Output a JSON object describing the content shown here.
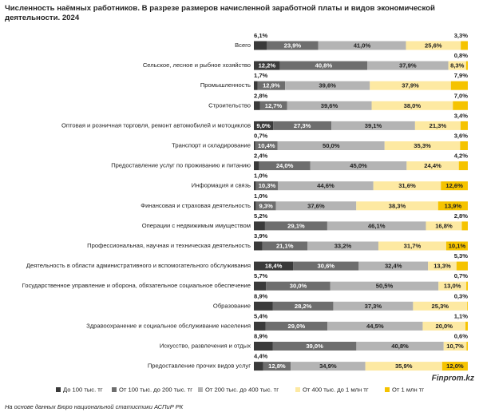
{
  "chart_data": {
    "type": "stacked-bar-horizontal-100",
    "title": "Численность наёмных работников. В разрезе размеров начисленной заработной платы и видов экономической деятельности. 2024",
    "categories": [
      "Всего",
      "Сельское, лесное и рыбное хозяйство",
      "Промышленность",
      "Строительство",
      "Оптовая и розничная торговля, ремонт автомобилей и мотоциклов",
      "Транспорт и складирование",
      "Предоставление услуг по проживанию и питанию",
      "Информация и связь",
      "Финансовая и страховая деятельность",
      "Операции с недвижимым имуществом",
      "Профессиональная, научная и техническая деятельность",
      "Деятельность в области административного и вспомогательного обслуживания",
      "Государственное управление и оборона, обязательное социальное обеспечение",
      "Образование",
      "Здравоохранение и социальное обслуживание населения",
      "Искусство, развлечения и отдых",
      "Предоставление прочих видов услуг"
    ],
    "series": [
      {
        "name": "До 100 тыс. тг",
        "color": "#3a3a3a",
        "values": [
          6.1,
          12.2,
          1.7,
          2.8,
          9.0,
          0.7,
          2.4,
          1.0,
          1.0,
          5.2,
          3.9,
          18.4,
          5.7,
          8.9,
          5.4,
          8.9,
          4.4
        ],
        "value_labels": [
          "6,1%",
          "12,2%",
          "1,7%",
          "2,8%",
          "9,0%",
          "0,7%",
          "2,4%",
          "1,0%",
          "1,0%",
          "5,2%",
          "3,9%",
          "18,4%",
          "5,7%",
          "8,9%",
          "5,4%",
          "8,9%",
          "4,4%"
        ]
      },
      {
        "name": "От 100 тыс. до 200 тыс. тг",
        "color": "#6e6e6e",
        "values": [
          23.9,
          40.8,
          12.9,
          12.7,
          27.3,
          10.4,
          24.0,
          10.3,
          9.3,
          29.1,
          21.1,
          30.6,
          30.0,
          28.2,
          29.0,
          39.0,
          12.8
        ],
        "value_labels": [
          "23,9%",
          "40,8%",
          "12,9%",
          "12,7%",
          "27,3%",
          "10,4%",
          "24,0%",
          "10,3%",
          "9,3%",
          "29,1%",
          "21,1%",
          "30,6%",
          "30,0%",
          "28,2%",
          "29,0%",
          "39,0%",
          "12,8%"
        ]
      },
      {
        "name": "От 200 тыс. до 400 тыс. тг",
        "color": "#b4b4b4",
        "values": [
          41.0,
          37.9,
          39.6,
          39.6,
          39.1,
          50.0,
          45.0,
          44.6,
          37.6,
          46.1,
          33.2,
          32.4,
          50.5,
          37.3,
          44.5,
          40.8,
          34.9
        ],
        "value_labels": [
          "41,0%",
          "37,9%",
          "39,6%",
          "39,6%",
          "39,1%",
          "50,0%",
          "45,0%",
          "44,6%",
          "37,6%",
          "46,1%",
          "33,2%",
          "32,4%",
          "50,5%",
          "37,3%",
          "44,5%",
          "40,8%",
          "34,9%"
        ]
      },
      {
        "name": "От 400 тыс. до 1 млн тг",
        "color": "#fde9a2",
        "values": [
          25.6,
          8.3,
          37.9,
          38.0,
          21.3,
          35.3,
          24.4,
          31.6,
          38.3,
          16.8,
          31.7,
          13.3,
          13.0,
          25.3,
          20.0,
          10.7,
          35.9
        ],
        "value_labels": [
          "25,6%",
          "8,3%",
          "37,9%",
          "38,0%",
          "21,3%",
          "35,3%",
          "24,4%",
          "31,6%",
          "38,3%",
          "16,8%",
          "31,7%",
          "13,3%",
          "13,0%",
          "25,3%",
          "20,0%",
          "10,7%",
          "35,9%"
        ]
      },
      {
        "name": "От 1 млн тг",
        "color": "#f5c300",
        "values": [
          3.3,
          0.8,
          7.9,
          7.0,
          3.4,
          3.6,
          4.2,
          12.6,
          13.9,
          2.8,
          10.1,
          5.3,
          0.7,
          0.3,
          1.1,
          0.6,
          12.0
        ],
        "value_labels": [
          "3,3%",
          "0,8%",
          "7,9%",
          "7,0%",
          "3,4%",
          "3,6%",
          "4,2%",
          "12,6%",
          "13,9%",
          "2,8%",
          "10,1%",
          "5,3%",
          "0,7%",
          "0,3%",
          "1,1%",
          "0,6%",
          "12,0%"
        ]
      }
    ],
    "source": "На основе данных Бюро национальной статистики АСПиР РК",
    "brand": "Finprom.kz"
  }
}
